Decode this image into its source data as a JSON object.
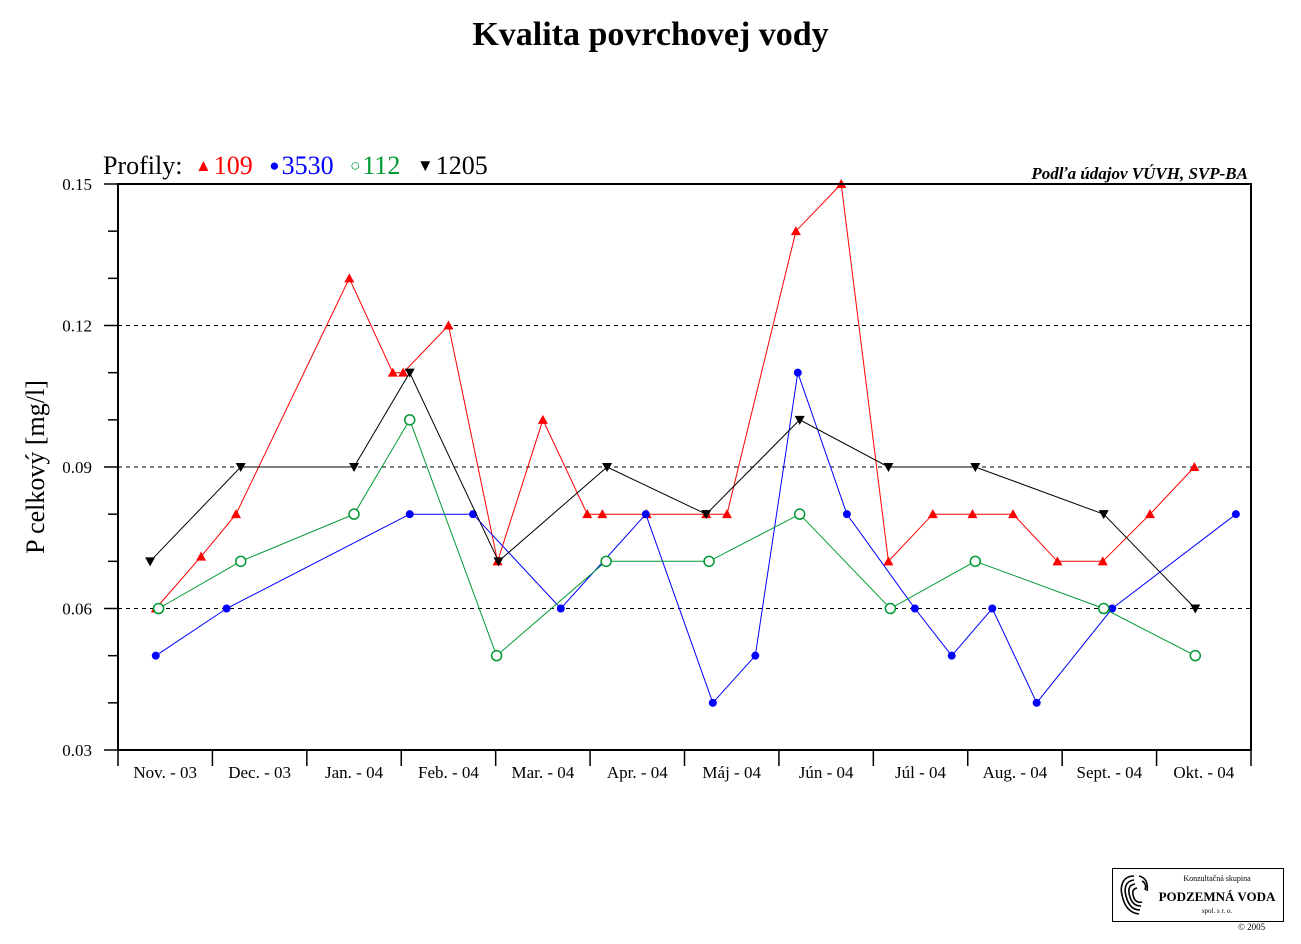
{
  "chart_data": {
    "type": "line",
    "title": "Kvalita povrchovej vody",
    "ylabel": "P celkový [mg/l]",
    "xlabel": "",
    "legend_label": "Profily:",
    "legend_position": "top-left",
    "source_note": "Podľa údajov VÚVH, SVP-BA",
    "ylim": [
      0.03,
      0.15
    ],
    "y_ticks": [
      "0.03",
      "0.06",
      "0.09",
      "0.12",
      "0.15"
    ],
    "gridlines": [
      0.06,
      0.09,
      0.12
    ],
    "x_range": [
      0,
      12
    ],
    "categories": [
      "Nov. - 03",
      "Dec. - 03",
      "Jan. - 04",
      "Feb. - 04",
      "Mar. - 04",
      "Apr. - 04",
      "Máj - 04",
      "Jún - 04",
      "Júl - 04",
      "Aug. - 04",
      "Sept. - 04",
      "Okt. - 04"
    ],
    "series": [
      {
        "name": "109",
        "color": "#ff0000",
        "marker": "triangle-up",
        "x": [
          0.4,
          0.88,
          1.25,
          2.45,
          2.91,
          3.02,
          3.5,
          4.02,
          4.5,
          4.97,
          5.13,
          5.6,
          6.23,
          6.45,
          7.18,
          7.66,
          8.16,
          8.63,
          9.05,
          9.48,
          9.95,
          10.43,
          10.93,
          11.4
        ],
        "values": [
          0.06,
          0.071,
          0.08,
          0.13,
          0.11,
          0.11,
          0.12,
          0.07,
          0.1,
          0.08,
          0.08,
          0.08,
          0.08,
          0.08,
          0.14,
          0.15,
          0.07,
          0.08,
          0.08,
          0.08,
          0.07,
          0.07,
          0.08,
          0.09
        ]
      },
      {
        "name": "3530",
        "color": "#0000ff",
        "marker": "circle",
        "x": [
          0.4,
          1.15,
          3.09,
          3.76,
          4.69,
          5.59,
          6.3,
          6.75,
          7.2,
          7.72,
          8.44,
          8.83,
          9.26,
          9.73,
          10.53,
          11.84
        ],
        "values": [
          0.05,
          0.06,
          0.08,
          0.08,
          0.06,
          0.08,
          0.04,
          0.05,
          0.11,
          0.08,
          0.06,
          0.05,
          0.06,
          0.04,
          0.06,
          0.08
        ]
      },
      {
        "name": "112",
        "color": "#009933",
        "marker": "circle-open",
        "x": [
          0.43,
          1.3,
          2.5,
          3.09,
          4.01,
          5.17,
          6.26,
          7.22,
          8.18,
          9.08,
          10.44,
          11.41
        ],
        "values": [
          0.06,
          0.07,
          0.08,
          0.1,
          0.05,
          0.07,
          0.07,
          0.08,
          0.06,
          0.07,
          0.06,
          0.05
        ]
      },
      {
        "name": "1205",
        "color": "#000000",
        "marker": "triangle-down",
        "x": [
          0.34,
          1.3,
          2.5,
          3.09,
          4.03,
          5.18,
          6.23,
          7.22,
          8.16,
          9.08,
          10.44,
          11.41
        ],
        "values": [
          0.07,
          0.09,
          0.09,
          0.11,
          0.07,
          0.09,
          0.08,
          0.1,
          0.09,
          0.09,
          0.08,
          0.06
        ]
      }
    ]
  },
  "logo": {
    "line1": "Konzultačná skupina",
    "line2": "PODZEMNÁ VODA",
    "line3": "spol. s r. o.",
    "copyright": "© 2005"
  }
}
